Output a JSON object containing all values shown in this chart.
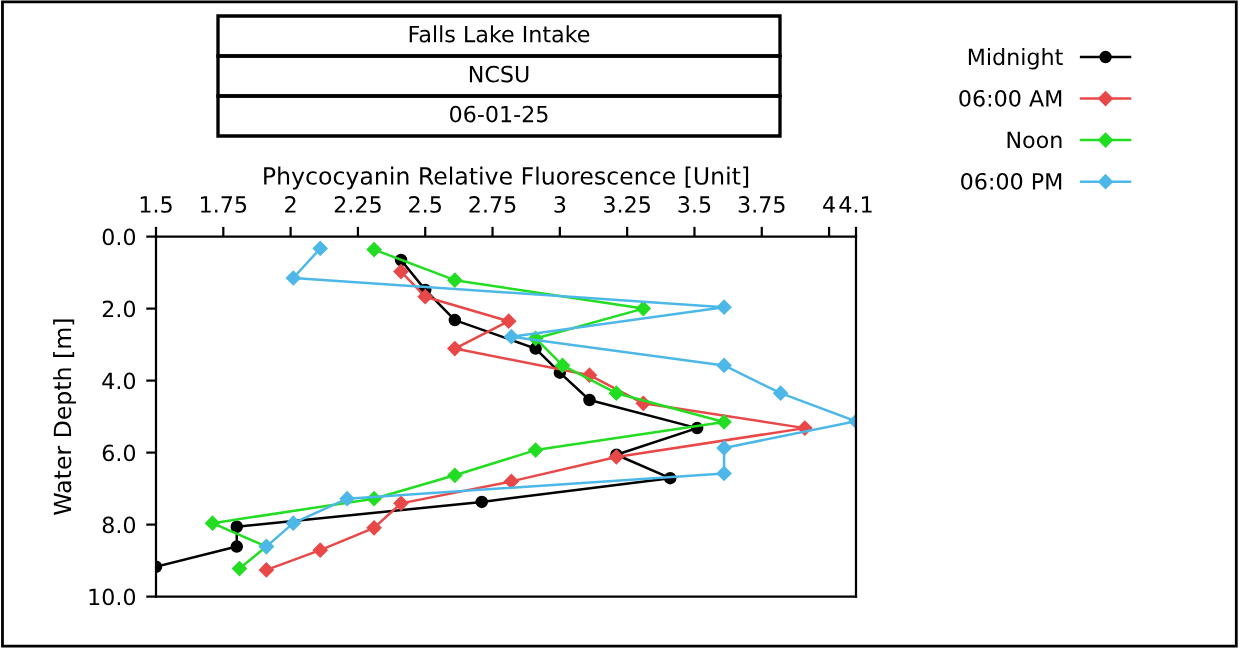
{
  "chart_data": {
    "type": "line",
    "title": "Falls Lake Intake",
    "subtitle": "NCSU",
    "annotations": [
      "06-01-25"
    ],
    "xlabel": "Phycocyanin Relative Fluorescence [Unit]",
    "ylabel": "Water Depth [m]",
    "xlim": [
      1.5,
      4.1
    ],
    "xticks": [
      1.5,
      1.75,
      2,
      2.25,
      2.5,
      2.75,
      3,
      3.25,
      3.5,
      3.75,
      4,
      4.1
    ],
    "ylim": [
      10,
      0
    ],
    "yticks": [
      {
        "value": 0,
        "label": "0.0"
      },
      {
        "value": 2,
        "label": "2.0"
      },
      {
        "value": 4,
        "label": "4.0"
      },
      {
        "value": 6,
        "label": "6.0"
      },
      {
        "value": 8,
        "label": "8.0"
      },
      {
        "value": 10,
        "label": "10.0"
      }
    ],
    "legend": "top right",
    "grid": false,
    "line_style": "solid",
    "series": [
      {
        "name": "Midnight",
        "color": "#000000",
        "marker": "circle",
        "x": [
          2.41,
          2.5,
          2.61,
          2.91,
          3.0,
          3.11,
          3.51,
          3.21,
          3.41,
          2.71,
          1.8,
          1.8,
          1.5
        ],
        "values": [
          0.65,
          1.48,
          2.32,
          3.11,
          3.78,
          4.54,
          5.32,
          6.06,
          6.71,
          7.37,
          8.06,
          8.61,
          9.17
        ]
      },
      {
        "name": "06:00 AM",
        "color": "#e84848",
        "marker": "diamond",
        "x": [
          2.41,
          2.5,
          2.81,
          2.61,
          3.11,
          3.31,
          3.91,
          3.21,
          2.82,
          2.41,
          2.31,
          2.11,
          1.91
        ],
        "values": [
          0.97,
          1.67,
          2.35,
          3.11,
          3.85,
          4.63,
          5.32,
          6.12,
          6.8,
          7.41,
          8.09,
          8.71,
          9.26
        ]
      },
      {
        "name": "Noon",
        "color": "#22dd22",
        "marker": "diamond",
        "x": [
          2.31,
          2.61,
          3.31,
          2.91,
          3.01,
          3.21,
          3.61,
          2.91,
          2.61,
          2.31,
          1.71,
          1.91,
          1.81
        ],
        "values": [
          0.36,
          1.21,
          2.0,
          2.83,
          3.58,
          4.35,
          5.15,
          5.93,
          6.63,
          7.28,
          7.96,
          8.61,
          9.22
        ]
      },
      {
        "name": "06:00 PM",
        "color": "#4db8e8",
        "marker": "diamond",
        "x": [
          2.11,
          2.01,
          3.61,
          2.82,
          3.61,
          3.82,
          4.1,
          3.61,
          3.61,
          2.21,
          2.01,
          1.91
        ],
        "values": [
          0.33,
          1.15,
          1.96,
          2.78,
          3.58,
          4.35,
          5.13,
          5.87,
          6.58,
          7.28,
          7.96,
          8.61
        ]
      }
    ]
  }
}
